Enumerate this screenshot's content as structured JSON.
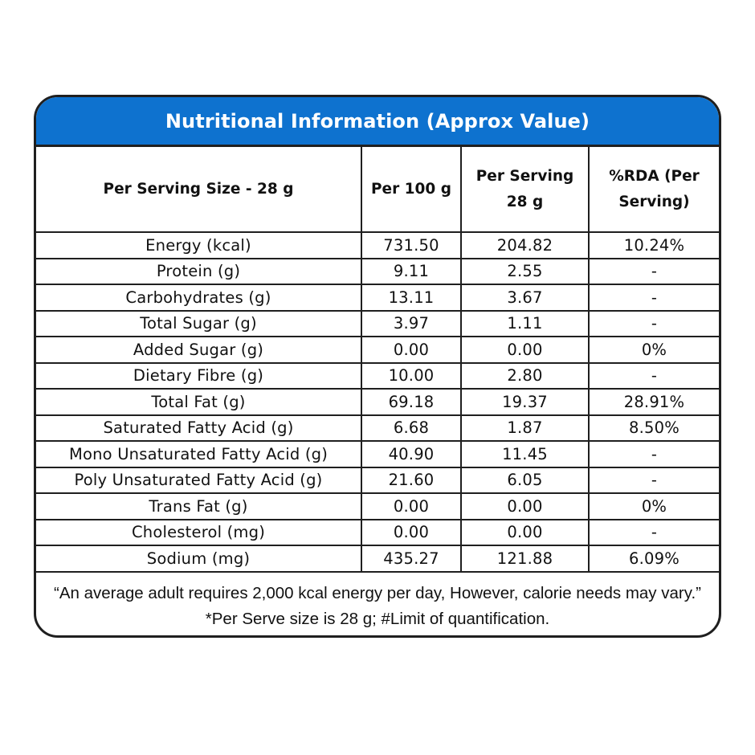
{
  "title": "Nutritional Information (Approx Value)",
  "headers": {
    "serving": "Per Serving Size - 28 g",
    "per100": "Per 100 g",
    "perServing": "Per Serving 28 g",
    "rda": "%RDA (Per Serving)"
  },
  "rows": [
    {
      "name": "Energy (kcal)",
      "per100": "731.50",
      "perServing": "204.82",
      "rda": "10.24%"
    },
    {
      "name": "Protein (g)",
      "per100": "9.11",
      "perServing": "2.55",
      "rda": "-"
    },
    {
      "name": "Carbohydrates (g)",
      "per100": "13.11",
      "perServing": "3.67",
      "rda": "-"
    },
    {
      "name": "Total Sugar (g)",
      "per100": "3.97",
      "perServing": "1.11",
      "rda": "-"
    },
    {
      "name": "Added Sugar (g)",
      "per100": "0.00",
      "perServing": "0.00",
      "rda": "0%"
    },
    {
      "name": "Dietary Fibre (g)",
      "per100": "10.00",
      "perServing": "2.80",
      "rda": "-"
    },
    {
      "name": "Total Fat (g)",
      "per100": "69.18",
      "perServing": "19.37",
      "rda": "28.91%"
    },
    {
      "name": "Saturated Fatty Acid (g)",
      "per100": "6.68",
      "perServing": "1.87",
      "rda": "8.50%"
    },
    {
      "name": "Mono Unsaturated Fatty Acid (g)",
      "per100": "40.90",
      "perServing": "11.45",
      "rda": "-"
    },
    {
      "name": "Poly Unsaturated Fatty Acid (g)",
      "per100": "21.60",
      "perServing": "6.05",
      "rda": "-"
    },
    {
      "name": "Trans Fat (g)",
      "per100": "0.00",
      "perServing": "0.00",
      "rda": "0%"
    },
    {
      "name": "Cholesterol (mg)",
      "per100": "0.00",
      "perServing": "0.00",
      "rda": "-"
    },
    {
      "name": "Sodium (mg)",
      "per100": "435.27",
      "perServing": "121.88",
      "rda": "6.09%"
    }
  ],
  "footnotes": [
    "“An average adult requires 2,000 kcal energy per day, However, calorie needs may vary.”",
    "*Per Serve size is 28 g; #Limit of quantification."
  ],
  "colors": {
    "header_bg": "#0e72cf",
    "header_text": "#ffffff",
    "border": "#1f1f1f"
  }
}
